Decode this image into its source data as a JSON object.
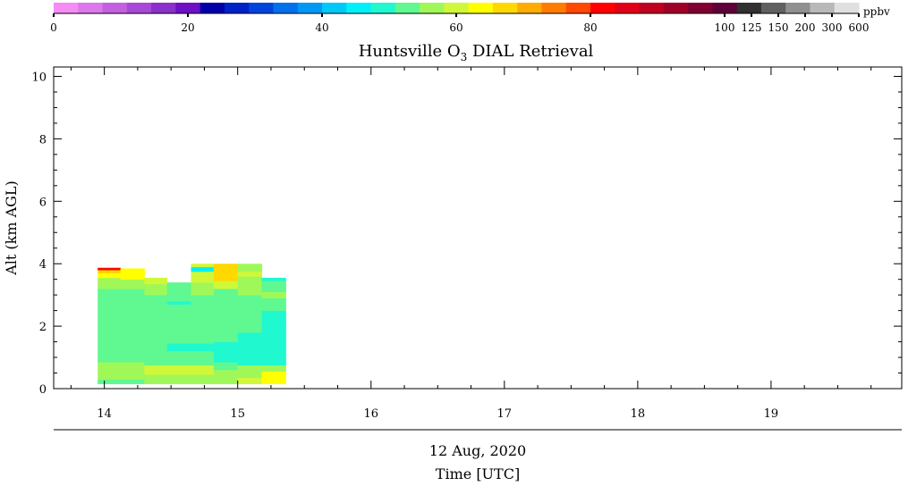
{
  "chart_data": {
    "type": "heatmap",
    "title_main": "Huntsville O",
    "title_sub": "3",
    "title_rest": " DIAL Retrieval",
    "ylabel": "Alt (km AGL)",
    "xlabel_date": "12 Aug, 2020",
    "xlabel_time": "Time [UTC]",
    "ylim": [
      0,
      10.3
    ],
    "xlim": [
      13.62,
      19.98
    ],
    "y_ticks": [
      0,
      2,
      4,
      6,
      8,
      10
    ],
    "x_ticks": [
      14,
      15,
      16,
      17,
      18,
      19
    ],
    "colorbar": {
      "unit": "ppbv",
      "labels": [
        "0",
        "20",
        "40",
        "60",
        "80",
        "100",
        "125",
        "150",
        "200",
        "300",
        "600"
      ],
      "colors": [
        "#f48cf4",
        "#dc78ec",
        "#c460e0",
        "#a848d8",
        "#8c30cc",
        "#7010c4",
        "#0000a8",
        "#0020c8",
        "#0044dc",
        "#0070ec",
        "#0098f4",
        "#00c8f8",
        "#00f0f8",
        "#20f8d0",
        "#60f890",
        "#a0f858",
        "#d0f838",
        "#ffff00",
        "#ffd800",
        "#ffac00",
        "#ff7c00",
        "#ff4800",
        "#ff0000",
        "#e00018",
        "#c00020",
        "#a00028",
        "#800030",
        "#600038",
        "#303030",
        "#606060",
        "#909090",
        "#b8b8b8",
        "#e0e0e0"
      ]
    },
    "series": [
      {
        "time": [
          13.95,
          14.12
        ],
        "cells": [
          {
            "alt": [
              0.15,
              0.3
            ],
            "value": 48
          },
          {
            "alt": [
              0.3,
              0.85
            ],
            "value": 52
          },
          {
            "alt": [
              0.85,
              1.8
            ],
            "value": 48
          },
          {
            "alt": [
              1.8,
              3.2
            ],
            "value": 49
          },
          {
            "alt": [
              3.2,
              3.55
            ],
            "value": 52
          },
          {
            "alt": [
              3.55,
              3.7
            ],
            "value": 57
          },
          {
            "alt": [
              3.7,
              3.8
            ],
            "value": 62
          },
          {
            "alt": [
              3.8,
              3.87
            ],
            "value": 75
          }
        ]
      },
      {
        "time": [
          14.12,
          14.3
        ],
        "cells": [
          {
            "alt": [
              0.15,
              0.3
            ],
            "value": 48
          },
          {
            "alt": [
              0.3,
              0.85
            ],
            "value": 52
          },
          {
            "alt": [
              0.85,
              1.8
            ],
            "value": 48
          },
          {
            "alt": [
              1.8,
              3.2
            ],
            "value": 49
          },
          {
            "alt": [
              3.2,
              3.5
            ],
            "value": 52
          },
          {
            "alt": [
              3.5,
              3.7
            ],
            "value": 57
          },
          {
            "alt": [
              3.7,
              3.85
            ],
            "value": 58
          }
        ]
      },
      {
        "time": [
          14.3,
          14.47
        ],
        "cells": [
          {
            "alt": [
              0.15,
              0.45
            ],
            "value": 52
          },
          {
            "alt": [
              0.45,
              0.75
            ],
            "value": 56
          },
          {
            "alt": [
              0.75,
              3.0
            ],
            "value": 48
          },
          {
            "alt": [
              3.0,
              3.35
            ],
            "value": 50
          },
          {
            "alt": [
              3.35,
              3.55
            ],
            "value": 55
          }
        ]
      },
      {
        "time": [
          14.47,
          14.65
        ],
        "cells": [
          {
            "alt": [
              0.15,
              0.45
            ],
            "value": 52
          },
          {
            "alt": [
              0.45,
              0.75
            ],
            "value": 56
          },
          {
            "alt": [
              0.75,
              1.2
            ],
            "value": 48
          },
          {
            "alt": [
              1.2,
              1.45
            ],
            "value": 45
          },
          {
            "alt": [
              1.45,
              2.7
            ],
            "value": 48
          },
          {
            "alt": [
              2.7,
              2.8
            ],
            "value": 44
          },
          {
            "alt": [
              2.8,
              3.4
            ],
            "value": 49
          }
        ]
      },
      {
        "time": [
          14.65,
          14.82
        ],
        "cells": [
          {
            "alt": [
              0.15,
              0.45
            ],
            "value": 52
          },
          {
            "alt": [
              0.45,
              0.75
            ],
            "value": 56
          },
          {
            "alt": [
              0.75,
              1.2
            ],
            "value": 48
          },
          {
            "alt": [
              1.2,
              1.45
            ],
            "value": 45
          },
          {
            "alt": [
              1.45,
              3.0
            ],
            "value": 48
          },
          {
            "alt": [
              3.0,
              3.4
            ],
            "value": 52
          },
          {
            "alt": [
              3.4,
              3.75
            ],
            "value": 56
          },
          {
            "alt": [
              3.75,
              3.9
            ],
            "value": 42
          },
          {
            "alt": [
              3.9,
              4.0
            ],
            "value": 54
          }
        ]
      },
      {
        "time": [
          14.82,
          15.0
        ],
        "cells": [
          {
            "alt": [
              0.15,
              0.6
            ],
            "value": 52
          },
          {
            "alt": [
              0.6,
              0.85
            ],
            "value": 48
          },
          {
            "alt": [
              0.85,
              1.5
            ],
            "value": 45
          },
          {
            "alt": [
              1.5,
              3.2
            ],
            "value": 48
          },
          {
            "alt": [
              3.2,
              3.45
            ],
            "value": 54
          },
          {
            "alt": [
              3.45,
              4.0
            ],
            "value": 60
          }
        ]
      },
      {
        "time": [
          15.0,
          15.18
        ],
        "cells": [
          {
            "alt": [
              0.15,
              0.35
            ],
            "value": 56
          },
          {
            "alt": [
              0.35,
              0.75
            ],
            "value": 52
          },
          {
            "alt": [
              0.75,
              1.5
            ],
            "value": 45
          },
          {
            "alt": [
              1.5,
              1.8
            ],
            "value": 46
          },
          {
            "alt": [
              1.8,
              3.0
            ],
            "value": 48
          },
          {
            "alt": [
              3.0,
              3.6
            ],
            "value": 52
          },
          {
            "alt": [
              3.6,
              3.75
            ],
            "value": 56
          },
          {
            "alt": [
              3.75,
              4.0
            ],
            "value": 52
          }
        ]
      },
      {
        "time": [
          15.18,
          15.36
        ],
        "cells": [
          {
            "alt": [
              0.15,
              0.55
            ],
            "value": 57
          },
          {
            "alt": [
              0.55,
              0.75
            ],
            "value": 52
          },
          {
            "alt": [
              0.75,
              1.7
            ],
            "value": 44
          },
          {
            "alt": [
              1.7,
              2.1
            ],
            "value": 46
          },
          {
            "alt": [
              2.1,
              2.5
            ],
            "value": 44
          },
          {
            "alt": [
              2.5,
              2.9
            ],
            "value": 48
          },
          {
            "alt": [
              2.9,
              3.1
            ],
            "value": 50
          },
          {
            "alt": [
              3.1,
              3.45
            ],
            "value": 48
          },
          {
            "alt": [
              3.45,
              3.55
            ],
            "value": 44
          }
        ]
      }
    ]
  }
}
